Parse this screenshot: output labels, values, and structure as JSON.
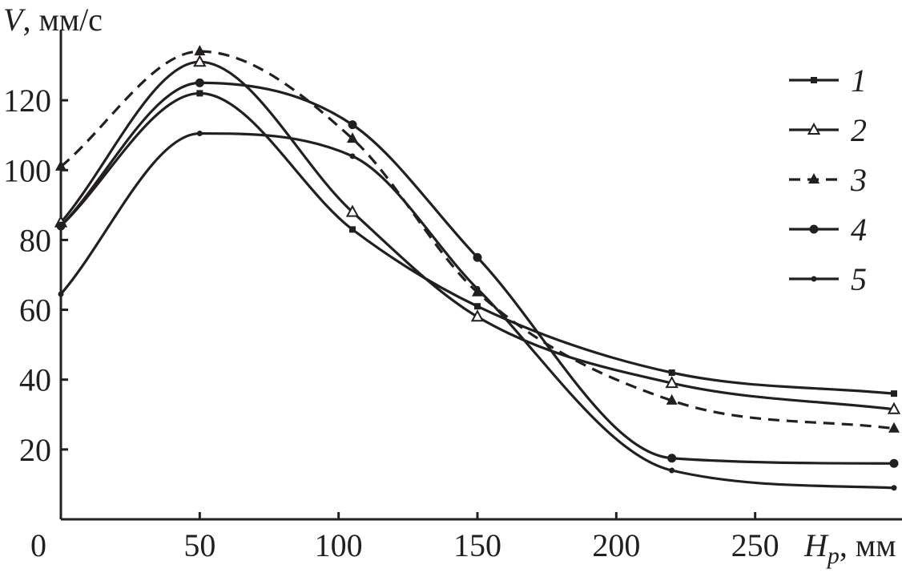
{
  "chart_data": {
    "type": "line",
    "title": "",
    "ylabel": {
      "symbol": "V",
      "unit": ", мм/с"
    },
    "xlabel": {
      "symbol": "H",
      "subscript": "p",
      "unit": ", мм"
    },
    "xlim": [
      0,
      300
    ],
    "ylim": [
      0,
      140
    ],
    "xticks": [
      0,
      50,
      100,
      150,
      200,
      250
    ],
    "yticks": [
      20,
      40,
      60,
      80,
      100,
      120
    ],
    "grid": false,
    "legend_position": "top-right",
    "series": [
      {
        "name": "1",
        "marker": "small-square",
        "dashed": false,
        "x": [
          0,
          50,
          105,
          150,
          220,
          300
        ],
        "y": [
          84,
          122,
          83,
          61,
          42,
          36
        ]
      },
      {
        "name": "2",
        "marker": "open-triangle",
        "dashed": false,
        "x": [
          0,
          50,
          105,
          150,
          220,
          300
        ],
        "y": [
          85,
          131,
          88,
          58,
          39,
          31.5
        ]
      },
      {
        "name": "3",
        "marker": "filled-triangle",
        "dashed": true,
        "x": [
          0,
          50,
          105,
          150,
          220,
          300
        ],
        "y": [
          101,
          134,
          109,
          65,
          34,
          26
        ]
      },
      {
        "name": "4",
        "marker": "filled-circle",
        "dashed": false,
        "x": [
          0,
          50,
          105,
          150,
          220,
          300
        ],
        "y": [
          84,
          125,
          113,
          75,
          17.5,
          16
        ]
      },
      {
        "name": "5",
        "marker": "small-dot",
        "dashed": false,
        "x": [
          0,
          50,
          105,
          150,
          220,
          300
        ],
        "y": [
          64.5,
          110.5,
          104,
          66,
          14,
          9
        ]
      }
    ]
  }
}
